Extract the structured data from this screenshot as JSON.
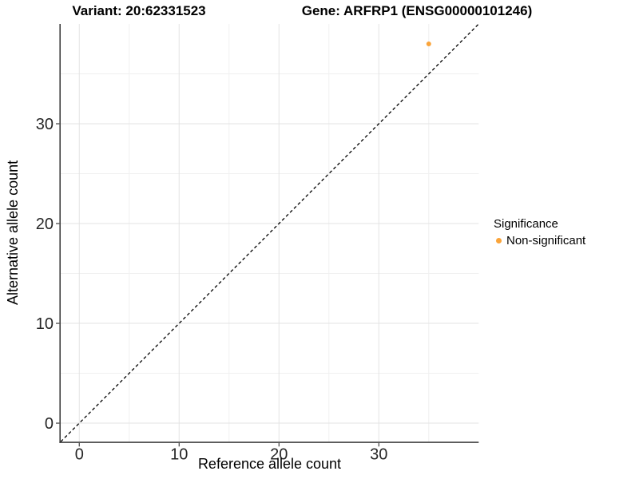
{
  "figure": {
    "title_variant": "Variant: 20:62331523",
    "title_gene": "Gene: ARFRP1 (ENSG00000101246)"
  },
  "axes": {
    "x_label": "Reference allele count",
    "y_label": "Alternative allele count"
  },
  "legend": {
    "title": "Significance",
    "items": [
      {
        "label": "Non-significant",
        "color": "#FAA43A"
      }
    ]
  },
  "chart_data": {
    "type": "scatter",
    "title": "Variant: 20:62331523   Gene: ARFRP1 (ENSG00000101246)",
    "xlabel": "Reference allele count",
    "ylabel": "Alternative allele count",
    "xlim": [
      -1.86,
      40.0
    ],
    "ylim": [
      -1.86,
      40.0
    ],
    "x_ticks": [
      0,
      10,
      20,
      30
    ],
    "y_ticks": [
      0,
      10,
      20,
      30
    ],
    "x_minor_ticks": [
      5,
      15,
      25,
      35
    ],
    "y_minor_ticks": [
      5,
      15,
      25,
      35
    ],
    "grid": true,
    "legend_position": "right",
    "series": [
      {
        "name": "Non-significant",
        "color": "#FAA43A",
        "points": [
          {
            "x": 35,
            "y": 38
          }
        ]
      }
    ],
    "reference_line": {
      "type": "identity y=x",
      "style": "dashed",
      "color": "#000000"
    }
  },
  "colors": {
    "background": "#FFFFFF",
    "axis_line": "#404040",
    "grid_major": "#E3E3E3",
    "grid_minor": "#F0F0F0",
    "tick_label": "#262626",
    "point": "#FAA43A"
  }
}
